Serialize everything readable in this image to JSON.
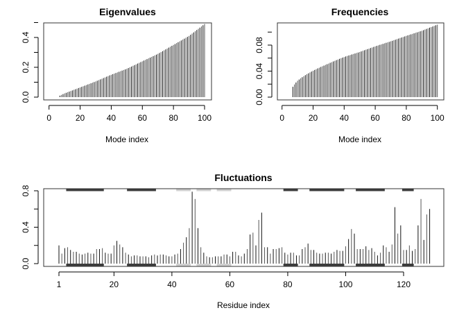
{
  "chart_data": [
    {
      "type": "bar",
      "title": "Eigenvalues",
      "xlabel": "Mode index",
      "ylabel": "",
      "xlim": [
        0,
        100
      ],
      "ylim": [
        0,
        0.5
      ],
      "xticks": [
        "0",
        "20",
        "40",
        "60",
        "80",
        "100"
      ],
      "yticks": [
        "0.0",
        "0.2",
        "0.4"
      ],
      "x_start": 1,
      "values": [
        0,
        0,
        0,
        0,
        0,
        0,
        0.01,
        0.015,
        0.02,
        0.025,
        0.029,
        0.033,
        0.037,
        0.041,
        0.045,
        0.049,
        0.053,
        0.057,
        0.061,
        0.065,
        0.069,
        0.073,
        0.077,
        0.081,
        0.085,
        0.089,
        0.093,
        0.097,
        0.101,
        0.105,
        0.11,
        0.114,
        0.119,
        0.123,
        0.128,
        0.132,
        0.137,
        0.141,
        0.146,
        0.15,
        0.154,
        0.158,
        0.162,
        0.166,
        0.17,
        0.174,
        0.178,
        0.182,
        0.186,
        0.19,
        0.195,
        0.2,
        0.205,
        0.21,
        0.215,
        0.22,
        0.225,
        0.23,
        0.235,
        0.24,
        0.245,
        0.25,
        0.255,
        0.26,
        0.265,
        0.27,
        0.275,
        0.28,
        0.285,
        0.29,
        0.296,
        0.302,
        0.308,
        0.314,
        0.32,
        0.326,
        0.332,
        0.338,
        0.344,
        0.35,
        0.356,
        0.362,
        0.368,
        0.374,
        0.38,
        0.386,
        0.392,
        0.398,
        0.404,
        0.41,
        0.418,
        0.426,
        0.434,
        0.442,
        0.45,
        0.458,
        0.466,
        0.474,
        0.482,
        0.49
      ]
    },
    {
      "type": "bar",
      "title": "Frequencies",
      "xlabel": "Mode index",
      "ylabel": "",
      "xlim": [
        0,
        100
      ],
      "ylim": [
        0,
        0.112
      ],
      "xticks": [
        "0",
        "20",
        "40",
        "60",
        "80",
        "100"
      ],
      "yticks": [
        "0.00",
        "0.04",
        "0.08"
      ],
      "x_start": 1,
      "values": [
        0,
        0,
        0,
        0,
        0,
        0,
        0.0159,
        0.0195,
        0.0225,
        0.0252,
        0.0271,
        0.0289,
        0.0306,
        0.0322,
        0.0338,
        0.0352,
        0.0366,
        0.038,
        0.0393,
        0.0406,
        0.0418,
        0.043,
        0.0442,
        0.0453,
        0.0464,
        0.0475,
        0.0485,
        0.0496,
        0.0506,
        0.0516,
        0.0528,
        0.0537,
        0.0549,
        0.0558,
        0.0569,
        0.0578,
        0.0589,
        0.0598,
        0.0608,
        0.0616,
        0.0625,
        0.0633,
        0.0641,
        0.0648,
        0.0656,
        0.0664,
        0.0671,
        0.0679,
        0.0686,
        0.0694,
        0.0703,
        0.0712,
        0.0721,
        0.0729,
        0.0738,
        0.0746,
        0.0755,
        0.0763,
        0.0772,
        0.078,
        0.0788,
        0.0796,
        0.0804,
        0.0812,
        0.0819,
        0.0827,
        0.0835,
        0.0842,
        0.085,
        0.0857,
        0.0866,
        0.0875,
        0.0883,
        0.0892,
        0.09,
        0.0909,
        0.0917,
        0.0925,
        0.0933,
        0.0942,
        0.095,
        0.0958,
        0.0965,
        0.0973,
        0.0981,
        0.0989,
        0.0996,
        0.1004,
        0.1012,
        0.1019,
        0.1029,
        0.1039,
        0.1049,
        0.1058,
        0.1068,
        0.1077,
        0.1086,
        0.1096,
        0.1105,
        0.1114
      ]
    },
    {
      "type": "bar",
      "title": "Fluctuations",
      "xlabel": "Residue index",
      "ylabel": "",
      "xlim": [
        1,
        129
      ],
      "ylim": [
        0,
        0.8
      ],
      "xticks": [
        "1",
        "20",
        "40",
        "60",
        "80",
        "100",
        "120"
      ],
      "yticks": [
        "0.0",
        "0.4",
        "0.8"
      ],
      "x_start": 1,
      "values": [
        0.2,
        0.11,
        0.17,
        0.18,
        0.15,
        0.13,
        0.13,
        0.11,
        0.1,
        0.11,
        0.12,
        0.11,
        0.11,
        0.16,
        0.16,
        0.17,
        0.12,
        0.11,
        0.11,
        0.2,
        0.25,
        0.21,
        0.18,
        0.12,
        0.1,
        0.08,
        0.09,
        0.09,
        0.08,
        0.08,
        0.08,
        0.07,
        0.09,
        0.1,
        0.09,
        0.1,
        0.1,
        0.09,
        0.08,
        0.08,
        0.1,
        0.11,
        0.16,
        0.23,
        0.29,
        0.39,
        0.79,
        0.71,
        0.39,
        0.18,
        0.12,
        0.08,
        0.07,
        0.07,
        0.08,
        0.08,
        0.08,
        0.1,
        0.1,
        0.08,
        0.13,
        0.13,
        0.09,
        0.08,
        0.11,
        0.16,
        0.32,
        0.34,
        0.2,
        0.48,
        0.56,
        0.18,
        0.18,
        0.11,
        0.16,
        0.16,
        0.17,
        0.18,
        0.12,
        0.1,
        0.12,
        0.12,
        0.09,
        0.09,
        0.16,
        0.18,
        0.22,
        0.15,
        0.15,
        0.12,
        0.11,
        0.11,
        0.12,
        0.12,
        0.11,
        0.13,
        0.15,
        0.14,
        0.14,
        0.19,
        0.27,
        0.38,
        0.33,
        0.16,
        0.16,
        0.16,
        0.19,
        0.15,
        0.17,
        0.13,
        0.09,
        0.12,
        0.2,
        0.18,
        0.13,
        0.21,
        0.62,
        0.33,
        0.42,
        0.15,
        0.15,
        0.2,
        0.14,
        0.16,
        0.42,
        0.71,
        0.26,
        0.54,
        0.6
      ],
      "sse": [
        {
          "type": "helix",
          "start": 4,
          "end": 16,
          "color": "#3c3c3c"
        },
        {
          "type": "helix",
          "start": 25,
          "end": 34,
          "color": "#3c3c3c"
        },
        {
          "type": "strand",
          "start": 42,
          "end": 46,
          "color": "#cfcfcf"
        },
        {
          "type": "strand",
          "start": 49,
          "end": 53,
          "color": "#cfcfcf"
        },
        {
          "type": "strand",
          "start": 56,
          "end": 60,
          "color": "#cfcfcf"
        },
        {
          "type": "helix",
          "start": 79,
          "end": 83,
          "color": "#3c3c3c"
        },
        {
          "type": "helix",
          "start": 88,
          "end": 99,
          "color": "#3c3c3c"
        },
        {
          "type": "helix",
          "start": 104,
          "end": 113,
          "color": "#3c3c3c"
        },
        {
          "type": "helix",
          "start": 120,
          "end": 123,
          "color": "#3c3c3c"
        }
      ]
    }
  ]
}
